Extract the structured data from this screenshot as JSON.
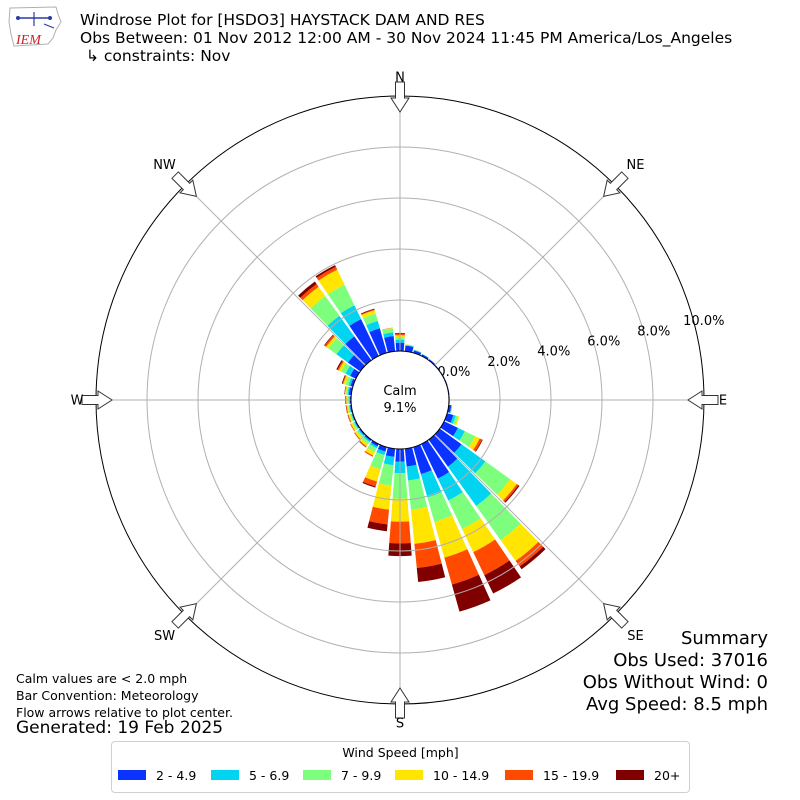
{
  "header": {
    "logo_text": "IEM",
    "title_line1": "Windrose Plot for [HSDO3] HAYSTACK DAM AND RES",
    "title_line2": "Obs Between: 01 Nov 2012 12:00 AM - 30 Nov 2024 11:45 PM America/Los_Angeles",
    "title_line3": "↳ constraints: Nov"
  },
  "notes": {
    "line1": "Calm values are < 2.0 mph",
    "line2": "Bar Convention: Meteorology",
    "line3": "Flow arrows relative to plot center.",
    "generated": "Generated: 19 Feb 2025"
  },
  "summary": {
    "heading": "Summary",
    "obs_used": "Obs Used: 37016",
    "obs_without_wind": "Obs Without Wind: 0",
    "avg_speed": "Avg Speed: 8.5 mph"
  },
  "legend": {
    "title": "Wind Speed [mph]",
    "items": [
      {
        "label": "2 - 4.9",
        "color": "#0a33ff"
      },
      {
        "label": "5 - 6.9",
        "color": "#00d4f0"
      },
      {
        "label": "7 - 9.9",
        "color": "#7dff7d"
      },
      {
        "label": "10 - 14.9",
        "color": "#ffe500"
      },
      {
        "label": "15 - 19.9",
        "color": "#ff4a00"
      },
      {
        "label": "20+",
        "color": "#800000"
      }
    ]
  },
  "chart_data": {
    "type": "windrose",
    "calm": {
      "label": "Calm",
      "value": "9.1%",
      "percent": 9.1
    },
    "radial_ticks": [
      "0.0%",
      "2.0%",
      "4.0%",
      "6.0%",
      "8.0%",
      "10.0%"
    ],
    "rmax": 10.0,
    "compass": [
      "N",
      "NE",
      "E",
      "SE",
      "S",
      "SW",
      "W",
      "NW"
    ],
    "bin_labels": [
      "2 - 4.9",
      "5 - 6.9",
      "7 - 9.9",
      "10 - 14.9",
      "15 - 19.9",
      "20+"
    ],
    "directions_deg": [
      0,
      10,
      20,
      30,
      40,
      50,
      60,
      70,
      80,
      90,
      100,
      110,
      120,
      130,
      140,
      150,
      160,
      170,
      180,
      190,
      200,
      210,
      220,
      230,
      240,
      250,
      260,
      270,
      280,
      290,
      300,
      310,
      320,
      330,
      340,
      350
    ],
    "cumulative_percent": [
      [
        0.33,
        0.45,
        0.55,
        0.62,
        0.68,
        0.71
      ],
      [
        0.22,
        0.25,
        0.27,
        0.28,
        0.28,
        0.28
      ],
      [
        0.1,
        0.12,
        0.13,
        0.14,
        0.14,
        0.14
      ],
      [
        0.07,
        0.08,
        0.09,
        0.09,
        0.09,
        0.09
      ],
      [
        0.05,
        0.05,
        0.05,
        0.05,
        0.05,
        0.05
      ],
      [
        0.03,
        0.03,
        0.03,
        0.03,
        0.03,
        0.03
      ],
      [
        0.03,
        0.03,
        0.03,
        0.03,
        0.03,
        0.03
      ],
      [
        0.03,
        0.03,
        0.03,
        0.03,
        0.03,
        0.03
      ],
      [
        0.03,
        0.03,
        0.03,
        0.03,
        0.03,
        0.03
      ],
      [
        0.03,
        0.03,
        0.03,
        0.03,
        0.03,
        0.03
      ],
      [
        0.1,
        0.12,
        0.14,
        0.15,
        0.15,
        0.15
      ],
      [
        0.25,
        0.35,
        0.45,
        0.5,
        0.5,
        0.5
      ],
      [
        0.6,
        0.9,
        1.35,
        1.55,
        1.65,
        1.68
      ],
      [
        1.05,
        2.2,
        3.4,
        3.72,
        3.8,
        3.85
      ],
      [
        1.3,
        3.2,
        4.85,
        5.85,
        6.12,
        6.25
      ],
      [
        1.5,
        2.45,
        3.7,
        4.7,
        5.7,
        6.5
      ],
      [
        1.1,
        2.05,
        3.05,
        4.5,
        5.6,
        6.7
      ],
      [
        0.7,
        1.25,
        2.4,
        3.75,
        4.7,
        5.25
      ],
      [
        0.5,
        0.95,
        1.95,
        2.85,
        3.7,
        4.2
      ],
      [
        0.32,
        0.65,
        1.45,
        2.4,
        2.98,
        3.25
      ],
      [
        0.18,
        0.32,
        0.9,
        1.4,
        1.6,
        1.65
      ],
      [
        0.1,
        0.18,
        0.35,
        0.5,
        0.55,
        0.55
      ],
      [
        0.06,
        0.12,
        0.22,
        0.32,
        0.36,
        0.37
      ],
      [
        0.05,
        0.1,
        0.18,
        0.26,
        0.3,
        0.3
      ],
      [
        0.04,
        0.08,
        0.15,
        0.22,
        0.25,
        0.25
      ],
      [
        0.04,
        0.07,
        0.12,
        0.18,
        0.21,
        0.22
      ],
      [
        0.05,
        0.08,
        0.13,
        0.18,
        0.21,
        0.22
      ],
      [
        0.05,
        0.09,
        0.14,
        0.19,
        0.22,
        0.23
      ],
      [
        0.1,
        0.15,
        0.21,
        0.25,
        0.27,
        0.28
      ],
      [
        0.1,
        0.18,
        0.3,
        0.39,
        0.42,
        0.45
      ],
      [
        0.25,
        0.45,
        0.65,
        0.75,
        0.8,
        0.85
      ],
      [
        0.6,
        1.15,
        1.55,
        1.65,
        1.72,
        1.75
      ],
      [
        1.15,
        2.15,
        3.1,
        3.55,
        3.68,
        3.8
      ],
      [
        1.6,
        2.2,
        3.1,
        3.75,
        3.88,
        3.95
      ],
      [
        1.0,
        1.3,
        1.6,
        1.74,
        1.77,
        1.8
      ],
      [
        0.6,
        0.75,
        0.9,
        0.92,
        0.93,
        0.93
      ]
    ]
  }
}
